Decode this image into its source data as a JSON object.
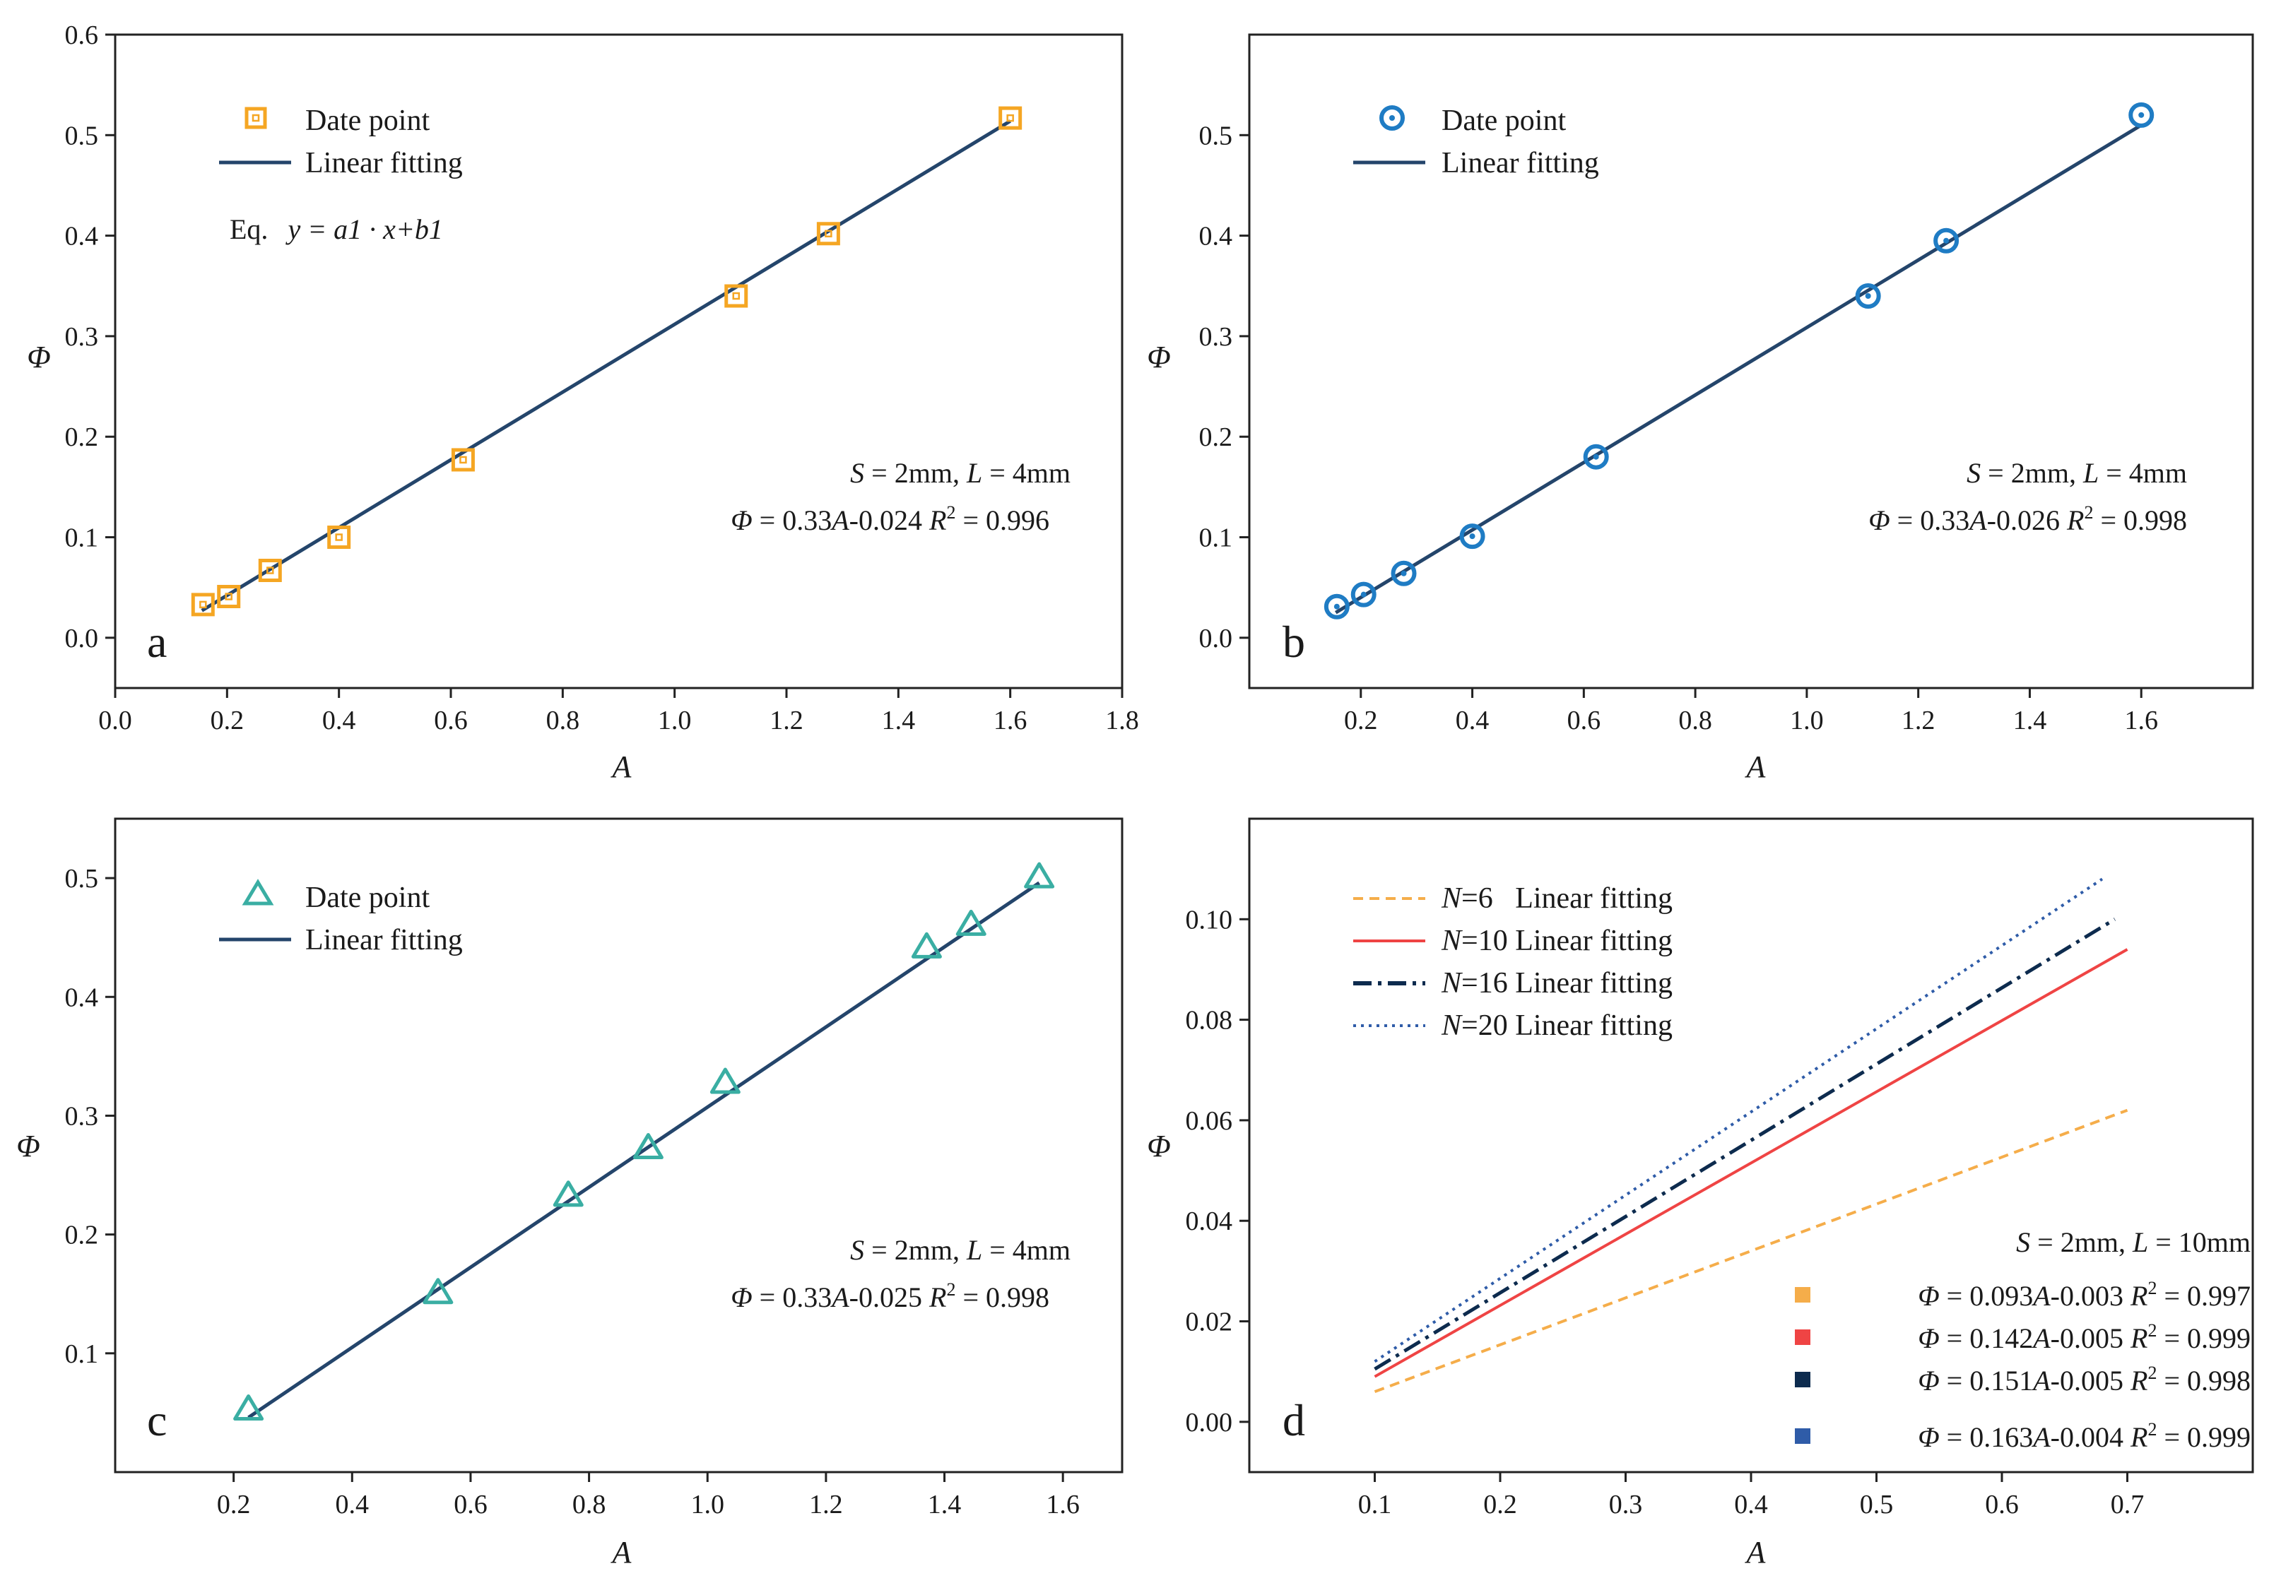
{
  "chart_data": [
    {
      "type": "scatter",
      "panel_label": "a",
      "xlabel": "A",
      "ylabel": "Φ",
      "xlim": [
        0.0,
        1.8
      ],
      "ylim": [
        -0.05,
        0.6
      ],
      "xticks": [
        "0.0",
        "0.2",
        "0.4",
        "0.6",
        "0.8",
        "1.0",
        "1.2",
        "1.4",
        "1.6",
        "1.8"
      ],
      "yticks": [
        "0.0",
        "0.1",
        "0.2",
        "0.3",
        "0.4",
        "0.5",
        "0.6"
      ],
      "marker": "square",
      "color": "#f5a623",
      "line_color": "#24456b",
      "legend": {
        "points": "Date point",
        "fit": "Linear fitting"
      },
      "equation_label": {
        "prefix": "Eq.",
        "formula": "y = a1 · x+b1"
      },
      "points": {
        "x": [
          0.157,
          0.203,
          0.277,
          0.4,
          0.622,
          1.11,
          1.275,
          1.6
        ],
        "y": [
          0.033,
          0.041,
          0.067,
          0.1,
          0.177,
          0.34,
          0.402,
          0.517
        ]
      },
      "fit": {
        "x": [
          0.155,
          1.6
        ],
        "y": [
          0.027,
          0.514
        ]
      },
      "annotation": {
        "s_var": "S",
        "s_val": " = 2mm, ",
        "l_var": "L",
        "l_val": " = 4mm",
        "phi": "Φ",
        "eq": " = 0.33",
        "a": "A",
        "eq2": "-0.024 ",
        "r": "R",
        "r_exp": "2",
        "r_val": " = 0.996"
      }
    },
    {
      "type": "scatter",
      "panel_label": "b",
      "xlabel": "A",
      "ylabel": "Φ",
      "xlim": [
        0.0,
        1.8
      ],
      "ylim": [
        -0.05,
        0.6
      ],
      "xticks": [
        "0.2",
        "0.4",
        "0.6",
        "0.8",
        "1.0",
        "1.2",
        "1.4",
        "1.6"
      ],
      "yticks": [
        "0.0",
        "0.1",
        "0.2",
        "0.3",
        "0.4",
        "0.5"
      ],
      "marker": "circle",
      "color": "#1f7cc4",
      "line_color": "#24456b",
      "legend": {
        "points": "Date point",
        "fit": "Linear fitting"
      },
      "points": {
        "x": [
          0.157,
          0.205,
          0.277,
          0.4,
          0.622,
          1.11,
          1.25,
          1.6
        ],
        "y": [
          0.031,
          0.043,
          0.064,
          0.101,
          0.18,
          0.34,
          0.395,
          0.52
        ]
      },
      "fit": {
        "x": [
          0.155,
          1.6
        ],
        "y": [
          0.025,
          0.51
        ]
      },
      "annotation": {
        "s_var": "S",
        "s_val": " = 2mm, ",
        "l_var": "L",
        "l_val": " = 4mm",
        "phi": "Φ",
        "eq": " = 0.33",
        "a": "A",
        "eq2": "-0.026 ",
        "r": "R",
        "r_exp": "2",
        "r_val": " = 0.998"
      }
    },
    {
      "type": "scatter",
      "panel_label": "c",
      "xlabel": "A",
      "ylabel": "Φ",
      "xlim": [
        0.0,
        1.7
      ],
      "ylim": [
        0.0,
        0.55
      ],
      "xticks": [
        "0.2",
        "0.4",
        "0.6",
        "0.8",
        "1.0",
        "1.2",
        "1.4",
        "1.6"
      ],
      "yticks": [
        "0.1",
        "0.2",
        "0.3",
        "0.4",
        "0.5"
      ],
      "marker": "triangle",
      "color": "#3aaea3",
      "line_color": "#24456b",
      "legend": {
        "points": "Date point",
        "fit": "Linear fitting"
      },
      "points": {
        "x": [
          0.225,
          0.545,
          0.765,
          0.9,
          1.03,
          1.37,
          1.445,
          1.56
        ],
        "y": [
          0.052,
          0.15,
          0.232,
          0.272,
          0.327,
          0.441,
          0.46,
          0.5
        ]
      },
      "fit": {
        "x": [
          0.225,
          1.56
        ],
        "y": [
          0.046,
          0.496
        ]
      },
      "annotation": {
        "s_var": "S",
        "s_val": " = 2mm, ",
        "l_var": "L",
        "l_val": " = 4mm",
        "phi": "Φ",
        "eq": " = 0.33",
        "a": "A",
        "eq2": "-0.025 ",
        "r": "R",
        "r_exp": "2",
        "r_val": " = 0.998"
      }
    },
    {
      "type": "line",
      "panel_label": "d",
      "xlabel": "A",
      "ylabel": "Φ",
      "xlim": [
        0.0,
        0.8
      ],
      "ylim": [
        -0.01,
        0.12
      ],
      "xticks": [
        "0.1",
        "0.2",
        "0.3",
        "0.4",
        "0.5",
        "0.6",
        "0.7"
      ],
      "yticks": [
        "0.00",
        "0.02",
        "0.04",
        "0.06",
        "0.08",
        "0.10"
      ],
      "condition": {
        "s_var": "S",
        "s_val": " = 2mm, ",
        "l_var": "L",
        "l_val": " = 10mm"
      },
      "series": [
        {
          "name_var": "N",
          "name_val": "=6   Linear fitting",
          "color": "#f5ad4a",
          "dash": "dashed",
          "x": [
            0.1,
            0.7
          ],
          "y": [
            0.006,
            0.062
          ],
          "eq": {
            "phi": "Φ",
            "eq": " = 0.093",
            "a": "A",
            "eq2": "-0.003 ",
            "r": "R",
            "r_exp": "2",
            "r_val": " = 0.997"
          }
        },
        {
          "name_var": "N",
          "name_val": "=10 Linear fitting",
          "color": "#ef4444",
          "dash": "solid",
          "x": [
            0.1,
            0.7
          ],
          "y": [
            0.009,
            0.094
          ],
          "eq": {
            "phi": "Φ",
            "eq": " = 0.142",
            "a": "A",
            "eq2": "-0.005 ",
            "r": "R",
            "r_exp": "2",
            "r_val": " = 0.999"
          }
        },
        {
          "name_var": "N",
          "name_val": "=16 Linear fitting",
          "color": "#0d2b4e",
          "dash": "dashdot",
          "x": [
            0.1,
            0.69
          ],
          "y": [
            0.0105,
            0.1
          ],
          "eq": {
            "phi": "Φ",
            "eq": " = 0.151",
            "a": "A",
            "eq2": "-0.005 ",
            "r": "R",
            "r_exp": "2",
            "r_val": " = 0.998"
          }
        },
        {
          "name_var": "N",
          "name_val": "=20 Linear fitting",
          "color": "#2f5ca8",
          "dash": "dotted",
          "x": [
            0.1,
            0.68
          ],
          "y": [
            0.012,
            0.108
          ],
          "eq": {
            "phi": "Φ",
            "eq": " = 0.163",
            "a": "A",
            "eq2": "-0.004 ",
            "r": "R",
            "r_exp": "2",
            "r_val": " = 0.999"
          }
        }
      ]
    }
  ]
}
